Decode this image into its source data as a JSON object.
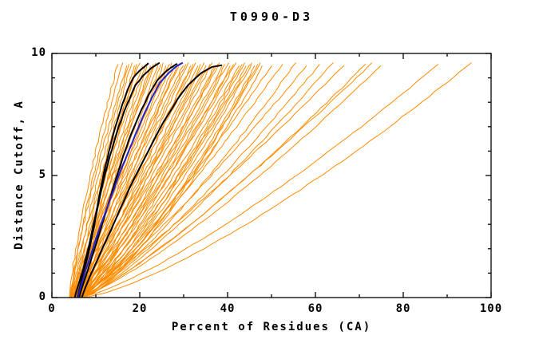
{
  "chart_data": {
    "type": "line",
    "title": "T0990-D3",
    "xlabel": "Percent of Residues (CA)",
    "ylabel": "Distance Cutoff, A",
    "xlim": [
      0,
      100
    ],
    "ylim": [
      0,
      10
    ],
    "x_ticks": [
      0,
      20,
      40,
      60,
      80,
      100
    ],
    "x_minor_step": 10,
    "y_ticks": [
      0,
      5,
      10
    ],
    "y_minor_step": 1,
    "grid": false,
    "legend": "none",
    "colors": {
      "orange_lines": "#ff8c00",
      "black_lines": "#000000",
      "blue_line": "#2222cc",
      "axis": "#000000",
      "background": "#ffffff"
    },
    "orange_lines_encoding": "each line = [x_at_y0, x_at_top, shape_exponent]; x(y)=x0+(xtop-x0)*(y/ytop)^p, ytop ~9.6",
    "orange_lines": [
      [
        4.2,
        17.0,
        1.25
      ],
      [
        5.0,
        17.6,
        1.24
      ],
      [
        5.8,
        18.2,
        1.23
      ],
      [
        6.5,
        18.8,
        1.22
      ],
      [
        7.2,
        19.4,
        1.21
      ],
      [
        4.2,
        20.0,
        1.2
      ],
      [
        5.0,
        20.6,
        1.19
      ],
      [
        5.8,
        21.3,
        1.17
      ],
      [
        6.5,
        21.9,
        1.16
      ],
      [
        7.2,
        22.5,
        1.15
      ],
      [
        4.2,
        23.1,
        1.14
      ],
      [
        5.0,
        23.7,
        1.13
      ],
      [
        5.8,
        24.3,
        1.12
      ],
      [
        6.5,
        24.9,
        1.11
      ],
      [
        7.2,
        25.5,
        1.1
      ],
      [
        4.2,
        26.1,
        1.09
      ],
      [
        5.0,
        26.7,
        1.08
      ],
      [
        5.8,
        27.3,
        1.07
      ],
      [
        6.5,
        27.9,
        1.06
      ],
      [
        7.2,
        28.6,
        1.04
      ],
      [
        4.2,
        29.2,
        1.03
      ],
      [
        5.0,
        29.8,
        1.02
      ],
      [
        5.8,
        30.4,
        1.01
      ],
      [
        6.5,
        31.0,
        1.0
      ],
      [
        7.2,
        31.6,
        0.99
      ],
      [
        4.2,
        32.2,
        0.98
      ],
      [
        5.0,
        32.8,
        0.97
      ],
      [
        5.8,
        33.4,
        0.96
      ],
      [
        6.5,
        34.0,
        0.95
      ],
      [
        7.2,
        34.6,
        0.94
      ],
      [
        4.2,
        35.2,
        0.93
      ],
      [
        5.0,
        35.9,
        0.92
      ],
      [
        5.8,
        36.5,
        0.9
      ],
      [
        6.5,
        37.1,
        0.89
      ],
      [
        7.2,
        37.7,
        0.88
      ],
      [
        4.2,
        38.3,
        0.87
      ],
      [
        5.0,
        38.9,
        0.86
      ],
      [
        5.8,
        39.5,
        0.85
      ],
      [
        6.5,
        40.1,
        0.84
      ],
      [
        7.2,
        40.7,
        0.83
      ],
      [
        4.2,
        41.3,
        0.82
      ],
      [
        5.0,
        41.9,
        0.81
      ],
      [
        5.8,
        42.6,
        0.8
      ],
      [
        6.5,
        43.2,
        0.78
      ],
      [
        7.2,
        43.8,
        0.77
      ],
      [
        4.2,
        44.4,
        0.76
      ],
      [
        5.0,
        45.0,
        0.75
      ],
      [
        5.8,
        45.6,
        0.74
      ],
      [
        6.5,
        46.2,
        0.73
      ],
      [
        7.2,
        46.8,
        0.72
      ],
      [
        5.0,
        47.4,
        0.71
      ],
      [
        5.8,
        48.0,
        0.7
      ],
      [
        4.0,
        15.0,
        1.3
      ],
      [
        4.5,
        16.0,
        1.28
      ],
      [
        5.5,
        50.0,
        0.8
      ],
      [
        6.0,
        52.5,
        0.82
      ],
      [
        6.5,
        55.5,
        0.78
      ],
      [
        5.8,
        58.0,
        0.84
      ],
      [
        6.2,
        61.0,
        0.8
      ],
      [
        7.0,
        64.0,
        0.82
      ],
      [
        5.2,
        66.5,
        0.86
      ],
      [
        6.5,
        71.5,
        0.82
      ],
      [
        7.0,
        73.0,
        0.85
      ],
      [
        6.0,
        75.0,
        0.8
      ],
      [
        6.5,
        88.0,
        0.78
      ],
      [
        7.5,
        95.5,
        0.75
      ]
    ],
    "black_lines": [
      [
        [
          5.2,
          0
        ],
        [
          6.0,
          0.5
        ],
        [
          7.2,
          1.2
        ],
        [
          8.0,
          1.8
        ],
        [
          9.0,
          2.6
        ],
        [
          10.0,
          3.4
        ],
        [
          10.6,
          4.0
        ],
        [
          11.5,
          4.8
        ],
        [
          12.2,
          5.4
        ],
        [
          13.0,
          6.0
        ],
        [
          14.0,
          6.7
        ],
        [
          15.0,
          7.3
        ],
        [
          16.0,
          7.9
        ],
        [
          17.2,
          8.5
        ],
        [
          18.5,
          9.0
        ],
        [
          20.0,
          9.3
        ],
        [
          22.0,
          9.6
        ]
      ],
      [
        [
          5.8,
          0
        ],
        [
          6.6,
          0.6
        ],
        [
          7.6,
          1.3
        ],
        [
          8.8,
          2.2
        ],
        [
          9.6,
          2.9
        ],
        [
          10.2,
          3.5
        ],
        [
          11.0,
          4.2
        ],
        [
          12.0,
          5.0
        ],
        [
          13.2,
          5.8
        ],
        [
          14.2,
          6.4
        ],
        [
          15.2,
          7.0
        ],
        [
          16.4,
          7.6
        ],
        [
          17.6,
          8.1
        ],
        [
          19.0,
          8.7
        ],
        [
          20.8,
          9.1
        ],
        [
          22.6,
          9.4
        ],
        [
          24.5,
          9.62
        ]
      ],
      [
        [
          6.2,
          0
        ],
        [
          7.4,
          0.7
        ],
        [
          9.0,
          1.6
        ],
        [
          10.4,
          2.4
        ],
        [
          11.6,
          3.1
        ],
        [
          12.6,
          3.7
        ],
        [
          13.8,
          4.4
        ],
        [
          15.0,
          5.1
        ],
        [
          16.2,
          5.8
        ],
        [
          17.6,
          6.5
        ],
        [
          19.0,
          7.1
        ],
        [
          20.4,
          7.7
        ],
        [
          22.0,
          8.3
        ],
        [
          24.0,
          8.9
        ],
        [
          26.2,
          9.3
        ],
        [
          28.5,
          9.58
        ]
      ],
      [
        [
          6.8,
          0
        ],
        [
          8.5,
          0.8
        ],
        [
          10.5,
          1.6
        ],
        [
          12.5,
          2.4
        ],
        [
          14.5,
          3.2
        ],
        [
          16.5,
          4.0
        ],
        [
          18.5,
          4.8
        ],
        [
          20.5,
          5.5
        ],
        [
          22.5,
          6.2
        ],
        [
          24.5,
          6.9
        ],
        [
          26.5,
          7.5
        ],
        [
          28.5,
          8.1
        ],
        [
          31.0,
          8.7
        ],
        [
          34.0,
          9.2
        ],
        [
          36.5,
          9.45
        ],
        [
          38.7,
          9.52
        ]
      ]
    ],
    "blue_line": [
      [
        5.9,
        0
      ],
      [
        7.0,
        0.7
      ],
      [
        8.4,
        1.5
      ],
      [
        10.0,
        2.4
      ],
      [
        11.6,
        3.2
      ],
      [
        13.2,
        4.0
      ],
      [
        15.0,
        4.9
      ],
      [
        16.6,
        5.6
      ],
      [
        18.2,
        6.3
      ],
      [
        19.8,
        7.0
      ],
      [
        21.2,
        7.6
      ],
      [
        22.8,
        8.2
      ],
      [
        24.6,
        8.8
      ],
      [
        26.6,
        9.2
      ],
      [
        28.2,
        9.45
      ],
      [
        29.8,
        9.62
      ]
    ]
  }
}
